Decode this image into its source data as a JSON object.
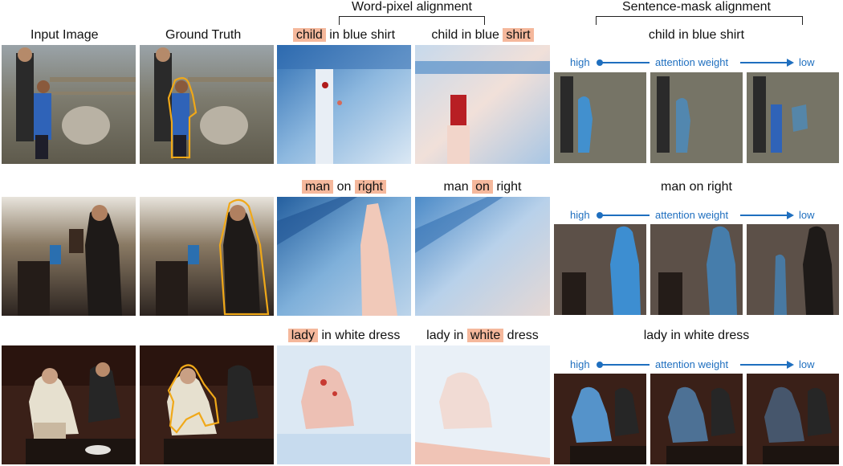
{
  "headers": {
    "input": "Input Image",
    "gt": "Ground Truth",
    "word_pixel": "Word-pixel alignment",
    "sentence_mask": "Sentence-mask alignment"
  },
  "attention": {
    "high": "high",
    "weight": "attention weight",
    "low": "low"
  },
  "rows": [
    {
      "wp1": {
        "pre": "",
        "hl": "child",
        "post": " in blue shirt"
      },
      "wp2": {
        "pre": "child in blue ",
        "hl": "shirt",
        "post": ""
      },
      "sentence": "child in blue shirt",
      "colors": {
        "scene": "#6b6a5e",
        "heatA": "#4f8fcb",
        "heatB": "#9fb7d6",
        "mask": "#3a95e0"
      }
    },
    {
      "wp1": {
        "pre": "",
        "hl": "man",
        "mid": " on ",
        "hl2": "right",
        "post": ""
      },
      "wp2": {
        "pre": "man ",
        "hl": "on",
        "post": " right"
      },
      "sentence": "man on right",
      "colors": {
        "scene": "#4a4540",
        "heatA": "#3c7ec0",
        "heatB": "#9ec0e0",
        "mask": "#3a95e0"
      }
    },
    {
      "wp1": {
        "pre": "",
        "hl": "lady",
        "post": " in white dress"
      },
      "wp2": {
        "pre": "lady in ",
        "hl": "white",
        "post": " dress"
      },
      "sentence": "lady in white dress",
      "colors": {
        "scene": "#3a2018",
        "heatA": "#c9ddef",
        "heatB": "#e7eef7",
        "mask": "#5aa8ea"
      }
    }
  ]
}
